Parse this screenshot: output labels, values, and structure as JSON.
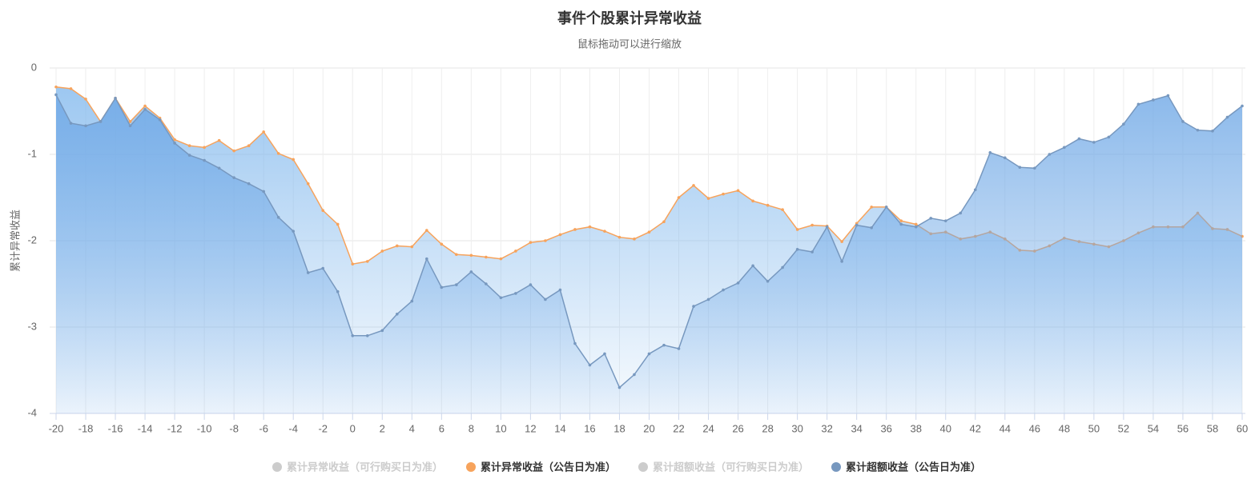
{
  "chart_data": {
    "type": "area",
    "title": "事件个股累计异常收益",
    "subtitle": "鼠标拖动可以进行缩放",
    "y_label": "累计异常收益",
    "x": [
      -20,
      -19,
      -18,
      -17,
      -16,
      -15,
      -14,
      -13,
      -12,
      -11,
      -10,
      -9,
      -8,
      -7,
      -6,
      -5,
      -4,
      -3,
      -2,
      -1,
      0,
      1,
      2,
      3,
      4,
      5,
      6,
      7,
      8,
      9,
      10,
      11,
      12,
      13,
      14,
      15,
      16,
      17,
      18,
      19,
      20,
      21,
      22,
      23,
      24,
      25,
      26,
      27,
      28,
      29,
      30,
      31,
      32,
      33,
      34,
      35,
      36,
      37,
      38,
      39,
      40,
      41,
      42,
      43,
      44,
      45,
      46,
      47,
      48,
      49,
      50,
      51,
      52,
      53,
      54,
      55,
      56,
      57,
      58,
      59,
      60
    ],
    "xlim": [
      -20,
      60
    ],
    "xticks": [
      -20,
      -18,
      -16,
      -14,
      -12,
      -10,
      -8,
      -6,
      -4,
      -2,
      0,
      2,
      4,
      6,
      8,
      10,
      12,
      14,
      16,
      18,
      20,
      22,
      24,
      26,
      28,
      30,
      32,
      34,
      36,
      38,
      40,
      42,
      44,
      46,
      48,
      50,
      52,
      54,
      56,
      58,
      60
    ],
    "ylim": [
      -4,
      0
    ],
    "yticks": [
      0,
      -1,
      -2,
      -3,
      -4
    ],
    "grid": true,
    "series": [
      {
        "name": "累计异常收益（可行购买日为准）",
        "color": "#cccccc",
        "visible": false
      },
      {
        "name": "累计异常收益（公告日为准）",
        "color": "#f7a35c",
        "visible": true,
        "values": [
          -0.22,
          -0.24,
          -0.36,
          -0.62,
          -0.35,
          -0.62,
          -0.44,
          -0.58,
          -0.83,
          -0.9,
          -0.92,
          -0.84,
          -0.96,
          -0.9,
          -0.74,
          -0.99,
          -1.06,
          -1.34,
          -1.65,
          -1.81,
          -2.27,
          -2.24,
          -2.12,
          -2.06,
          -2.07,
          -1.88,
          -2.04,
          -2.16,
          -2.17,
          -2.19,
          -2.21,
          -2.12,
          -2.02,
          -2.0,
          -1.93,
          -1.87,
          -1.84,
          -1.89,
          -1.96,
          -1.98,
          -1.9,
          -1.78,
          -1.5,
          -1.36,
          -1.51,
          -1.46,
          -1.42,
          -1.54,
          -1.59,
          -1.64,
          -1.87,
          -1.82,
          -1.83,
          -2.01,
          -1.8,
          -1.61,
          -1.61,
          -1.77,
          -1.81,
          -1.92,
          -1.9,
          -1.98,
          -1.95,
          -1.9,
          -1.98,
          -2.11,
          -2.12,
          -2.06,
          -1.97,
          -2.01,
          -2.04,
          -2.07,
          -2.0,
          -1.91,
          -1.84,
          -1.84,
          -1.84,
          -1.68,
          -1.86,
          -1.87,
          -1.95
        ]
      },
      {
        "name": "累计超额收益（可行购买日为准）",
        "color": "#cccccc",
        "visible": false
      },
      {
        "name": "累计超额收益（公告日为准）",
        "color": "#7798bf",
        "visible": true,
        "values": [
          -0.31,
          -0.64,
          -0.67,
          -0.62,
          -0.35,
          -0.67,
          -0.48,
          -0.6,
          -0.87,
          -1.01,
          -1.07,
          -1.16,
          -1.27,
          -1.34,
          -1.43,
          -1.73,
          -1.89,
          -2.37,
          -2.32,
          -2.59,
          -3.1,
          -3.1,
          -3.04,
          -2.85,
          -2.7,
          -2.21,
          -2.54,
          -2.51,
          -2.36,
          -2.5,
          -2.66,
          -2.61,
          -2.51,
          -2.68,
          -2.57,
          -3.19,
          -3.44,
          -3.31,
          -3.7,
          -3.55,
          -3.31,
          -3.21,
          -3.25,
          -2.76,
          -2.68,
          -2.57,
          -2.49,
          -2.29,
          -2.47,
          -2.31,
          -2.1,
          -2.13,
          -1.84,
          -2.24,
          -1.82,
          -1.85,
          -1.61,
          -1.81,
          -1.84,
          -1.74,
          -1.77,
          -1.68,
          -1.41,
          -0.98,
          -1.04,
          -1.15,
          -1.16,
          -1.0,
          -0.92,
          -0.82,
          -0.86,
          -0.8,
          -0.65,
          -0.42,
          -0.37,
          -0.32,
          -0.62,
          -0.72,
          -0.73,
          -0.57,
          -0.44
        ]
      }
    ]
  }
}
